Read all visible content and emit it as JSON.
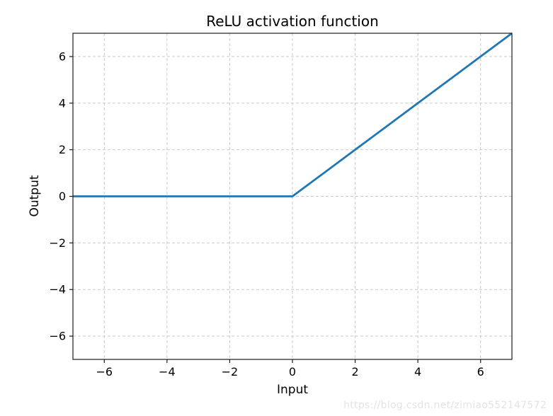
{
  "page": {
    "background": "#ffffff"
  },
  "watermark": {
    "text": "https://blog.csdn.net/zimiao552147572",
    "color": "#e3e3e3"
  },
  "chart_data": {
    "type": "line",
    "title": "ReLU activation function",
    "xlabel": "Input",
    "ylabel": "Output",
    "xlim": [
      -7,
      7
    ],
    "ylim": [
      -7,
      7
    ],
    "xticks": [
      -6,
      -4,
      -2,
      0,
      2,
      4,
      6
    ],
    "xtick_labels": [
      "−6",
      "−4",
      "−2",
      "0",
      "2",
      "4",
      "6"
    ],
    "yticks": [
      -6,
      -4,
      -2,
      0,
      2,
      4,
      6
    ],
    "ytick_labels": [
      "−6",
      "−4",
      "−2",
      "0",
      "2",
      "4",
      "6"
    ],
    "grid": true,
    "grid_linestyle": "dashed",
    "legend": null,
    "series": [
      {
        "name": "ReLU",
        "color": "#1f77b4",
        "x": [
          -7,
          -6,
          -5,
          -4,
          -3,
          -2,
          -1,
          0,
          1,
          2,
          3,
          4,
          5,
          6,
          7
        ],
        "y": [
          0,
          0,
          0,
          0,
          0,
          0,
          0,
          0,
          1,
          2,
          3,
          4,
          5,
          6,
          7
        ]
      }
    ],
    "colors": {
      "line": "#1f77b4",
      "grid": "#c9c9c9",
      "spine": "#1a1a1a",
      "text": "#000000"
    }
  }
}
